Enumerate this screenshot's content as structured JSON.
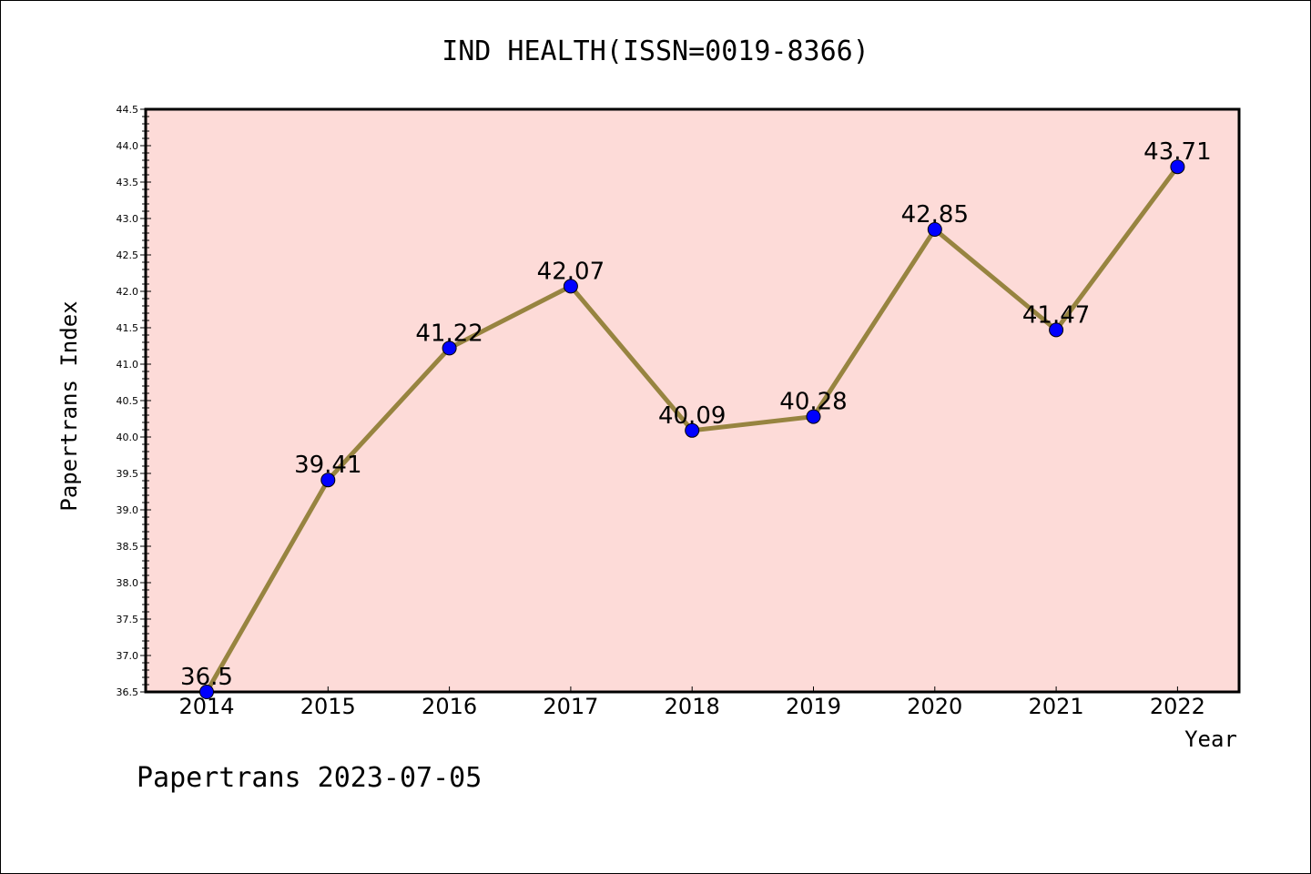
{
  "chart_data": {
    "type": "line",
    "title": "IND HEALTH(ISSN=0019-8366)",
    "xlabel": "Year",
    "ylabel": "Papertrans Index",
    "x": [
      "2014",
      "2015",
      "2016",
      "2017",
      "2018",
      "2019",
      "2020",
      "2021",
      "2022"
    ],
    "y": [
      36.5,
      39.41,
      41.22,
      42.07,
      40.09,
      40.28,
      42.85,
      41.47,
      43.71
    ],
    "data_labels": [
      "36.5",
      "39.41",
      "41.22",
      "42.07",
      "40.09",
      "40.28",
      "42.85",
      "41.47",
      "43.71"
    ],
    "ylim": [
      36.5,
      44.5
    ],
    "yticks": [
      "36.5",
      "37.0",
      "37.5",
      "38.0",
      "38.5",
      "39.0",
      "39.5",
      "40.0",
      "40.5",
      "41.0",
      "41.5",
      "42.0",
      "42.5",
      "43.0",
      "43.5",
      "44.0",
      "44.5"
    ],
    "grid": false,
    "colors": {
      "plot_bg": "#fddbd8",
      "line": "#978440",
      "marker": "#0000ff"
    }
  },
  "footer": "Papertrans 2023-07-05"
}
